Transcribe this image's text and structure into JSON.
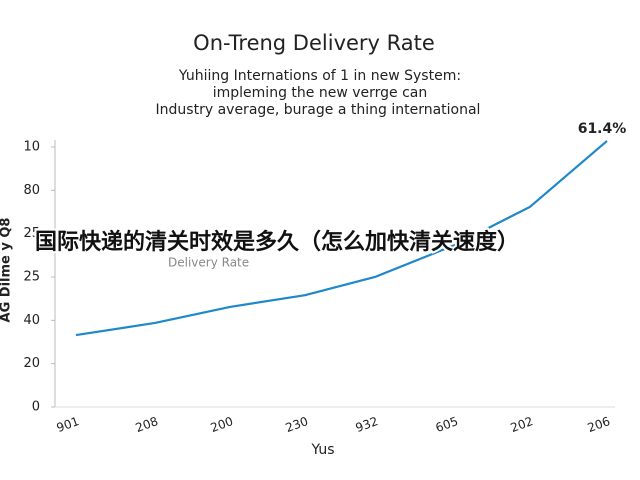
{
  "chart_data": {
    "type": "line",
    "title": "On-Treng Delivery Rate",
    "subtitle": [
      "Yuhiing Internations of 1 in new System:",
      "impleming the new verrge can",
      "Industry average, burage a thing international"
    ],
    "x_label": "Yus",
    "y_label": "AG Dilme y Q8",
    "categories": [
      "901",
      "208",
      "200",
      "230",
      "932",
      "605",
      "202",
      "206"
    ],
    "series": [
      {
        "name": "Delivery Rate",
        "color": "#1f88c9",
        "values": [
          16.6,
          19.4,
          23.1,
          25.8,
          30,
          37.4,
          46.2,
          61.4
        ],
        "value_labels": [
          null,
          null,
          null,
          null,
          null,
          null,
          null,
          "61.4%"
        ]
      }
    ],
    "ylim": [
      0,
      60
    ],
    "yticks": [
      0,
      {
        "value": 10,
        "label": "20"
      },
      {
        "value": 20,
        "label": "40"
      },
      {
        "value": 30,
        "label": "25"
      },
      {
        "value": 40,
        "label": "25"
      },
      {
        "value": 50,
        "label": "80"
      },
      {
        "value": 60,
        "label": "10"
      }
    ],
    "grid": false,
    "overlay_text": "国际快递的清关时效是多久（怎么加快清关速度）"
  }
}
